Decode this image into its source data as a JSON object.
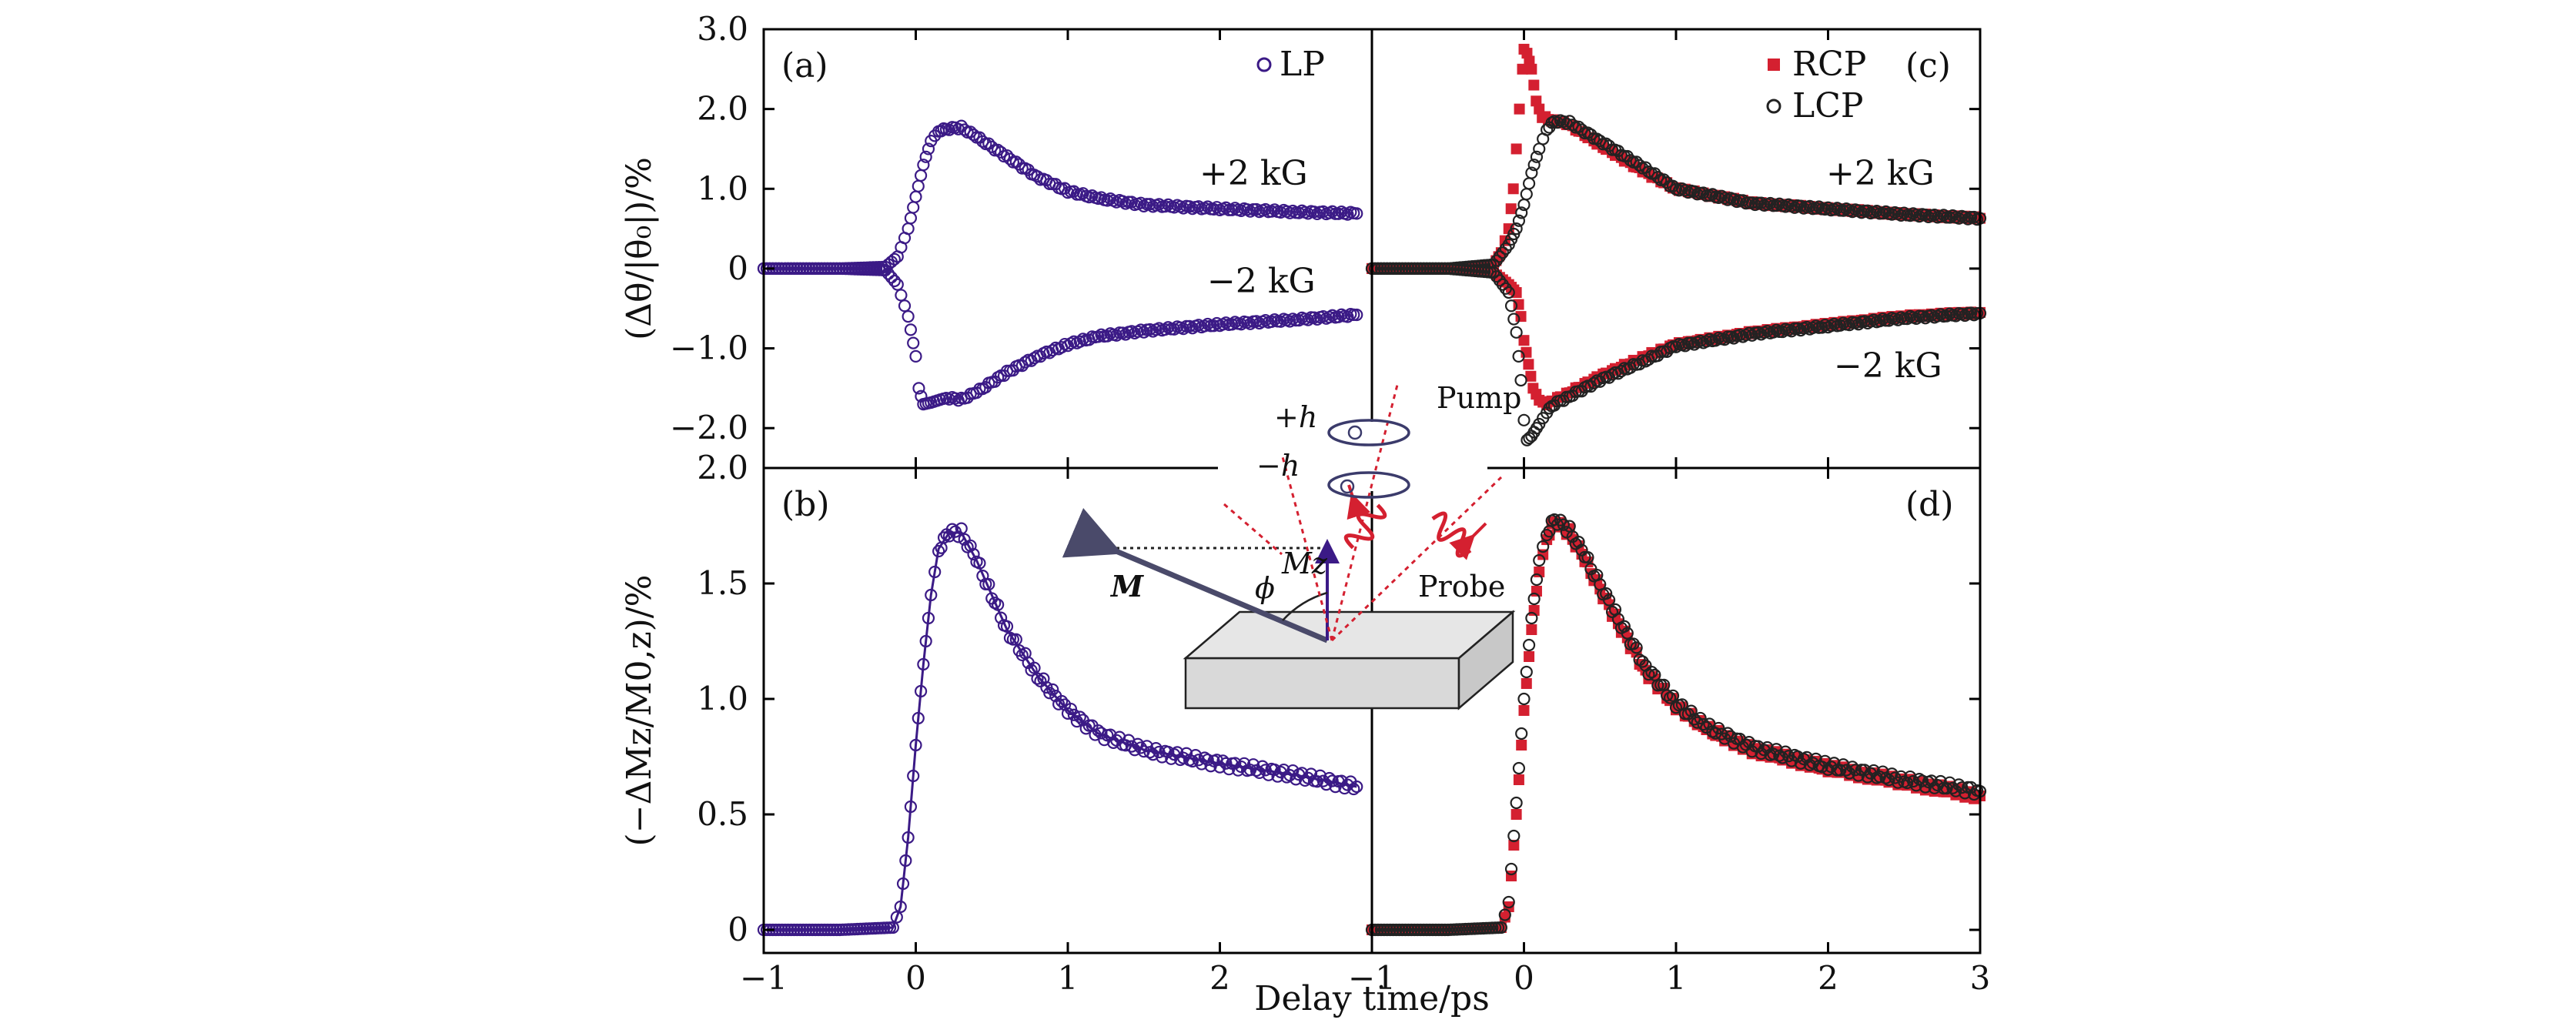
{
  "chart_data": [
    {
      "panel": "(a)",
      "type": "scatter",
      "xlim": [
        -1,
        3
      ],
      "ylim": [
        -2.5,
        3.0
      ],
      "yticks": [
        "3.0",
        "2.0",
        "1.0",
        "0",
        "−1.0",
        "−2.0"
      ],
      "ytick_values": [
        3.0,
        2.0,
        1.0,
        0,
        -1.0,
        -2.0
      ],
      "ylabel": "(Δθ/|θ₀|)/%",
      "legend": [
        "LP"
      ],
      "legend_position": "top-right",
      "annotations": [
        "+2 kG",
        "−2 kG"
      ],
      "colors": {
        "LP": "#3b1a86"
      },
      "series": [
        {
          "name": "LP",
          "field": "+2 kG",
          "points": [
            [
              -1.0,
              0
            ],
            [
              -0.5,
              0
            ],
            [
              -0.2,
              0.02
            ],
            [
              -0.12,
              0.15
            ],
            [
              -0.05,
              0.5
            ],
            [
              0.0,
              0.9
            ],
            [
              0.05,
              1.3
            ],
            [
              0.1,
              1.6
            ],
            [
              0.15,
              1.73
            ],
            [
              0.2,
              1.75
            ],
            [
              0.3,
              1.77
            ],
            [
              0.4,
              1.65
            ],
            [
              0.6,
              1.4
            ],
            [
              0.8,
              1.15
            ],
            [
              1.0,
              0.97
            ],
            [
              1.2,
              0.88
            ],
            [
              1.5,
              0.8
            ],
            [
              2.0,
              0.75
            ],
            [
              2.5,
              0.71
            ],
            [
              2.9,
              0.69
            ]
          ]
        },
        {
          "name": "LP",
          "field": "−2 kG",
          "points": [
            [
              -1.0,
              0
            ],
            [
              -0.5,
              0
            ],
            [
              -0.2,
              -0.02
            ],
            [
              -0.12,
              -0.2
            ],
            [
              -0.05,
              -0.6
            ],
            [
              0.0,
              -1.1
            ],
            [
              0.02,
              -1.5
            ],
            [
              0.05,
              -1.7
            ],
            [
              0.1,
              -1.68
            ],
            [
              0.2,
              -1.62
            ],
            [
              0.3,
              -1.64
            ],
            [
              0.4,
              -1.55
            ],
            [
              0.6,
              -1.3
            ],
            [
              0.8,
              -1.1
            ],
            [
              1.0,
              -0.95
            ],
            [
              1.2,
              -0.85
            ],
            [
              1.5,
              -0.78
            ],
            [
              2.0,
              -0.7
            ],
            [
              2.5,
              -0.64
            ],
            [
              2.9,
              -0.58
            ]
          ]
        }
      ]
    },
    {
      "panel": "(b)",
      "type": "scatter",
      "xlim": [
        -1,
        3
      ],
      "ylim": [
        -0.1,
        2.0
      ],
      "yticks": [
        "2.0",
        "1.5",
        "1.0",
        "0.5",
        "0"
      ],
      "ytick_values": [
        2.0,
        1.5,
        1.0,
        0.5,
        0
      ],
      "ylabel": "(−ΔMz/M0,z)/%",
      "series": [
        {
          "name": "LP",
          "points": [
            [
              -1.0,
              0
            ],
            [
              -0.5,
              0
            ],
            [
              -0.15,
              0.01
            ],
            [
              -0.1,
              0.1
            ],
            [
              -0.05,
              0.4
            ],
            [
              0.0,
              0.8
            ],
            [
              0.05,
              1.15
            ],
            [
              0.1,
              1.45
            ],
            [
              0.15,
              1.65
            ],
            [
              0.22,
              1.72
            ],
            [
              0.3,
              1.72
            ],
            [
              0.4,
              1.6
            ],
            [
              0.5,
              1.45
            ],
            [
              0.6,
              1.3
            ],
            [
              0.8,
              1.1
            ],
            [
              1.0,
              0.95
            ],
            [
              1.2,
              0.85
            ],
            [
              1.5,
              0.78
            ],
            [
              2.0,
              0.72
            ],
            [
              2.5,
              0.67
            ],
            [
              2.9,
              0.62
            ]
          ]
        }
      ]
    },
    {
      "panel": "(c)",
      "type": "scatter",
      "xlim": [
        -1,
        3
      ],
      "ylim": [
        -2.5,
        3.0
      ],
      "legend": [
        "RCP",
        "LCP"
      ],
      "legend_position": "top-right",
      "annotations": [
        "+2 kG",
        "−2 kG"
      ],
      "colors": {
        "RCP": "#d42030",
        "LCP": "#222222"
      },
      "series": [
        {
          "name": "RCP",
          "field": "+2 kG",
          "points": [
            [
              -1.0,
              0
            ],
            [
              -0.5,
              0
            ],
            [
              -0.2,
              0.05
            ],
            [
              -0.15,
              0.2
            ],
            [
              -0.1,
              0.5
            ],
            [
              -0.07,
              1.0
            ],
            [
              -0.05,
              1.5
            ],
            [
              -0.03,
              2.0
            ],
            [
              -0.01,
              2.5
            ],
            [
              0.0,
              2.75
            ],
            [
              0.02,
              2.7
            ],
            [
              0.05,
              2.5
            ],
            [
              0.08,
              2.1
            ],
            [
              0.12,
              1.9
            ],
            [
              0.2,
              1.85
            ],
            [
              0.3,
              1.8
            ],
            [
              0.5,
              1.55
            ],
            [
              0.8,
              1.2
            ],
            [
              1.0,
              1.0
            ],
            [
              1.5,
              0.82
            ],
            [
              2.0,
              0.75
            ],
            [
              2.5,
              0.68
            ],
            [
              3.0,
              0.63
            ]
          ]
        },
        {
          "name": "LCP",
          "field": "+2 kG",
          "points": [
            [
              -1.0,
              0
            ],
            [
              -0.5,
              0
            ],
            [
              -0.2,
              0.05
            ],
            [
              -0.1,
              0.3
            ],
            [
              -0.05,
              0.5
            ],
            [
              0.0,
              0.8
            ],
            [
              0.05,
              1.2
            ],
            [
              0.1,
              1.5
            ],
            [
              0.15,
              1.75
            ],
            [
              0.2,
              1.85
            ],
            [
              0.3,
              1.83
            ],
            [
              0.5,
              1.6
            ],
            [
              0.8,
              1.25
            ],
            [
              1.0,
              1.0
            ],
            [
              1.5,
              0.82
            ],
            [
              2.0,
              0.75
            ],
            [
              2.5,
              0.68
            ],
            [
              3.0,
              0.63
            ]
          ]
        },
        {
          "name": "RCP",
          "field": "−2 kG",
          "points": [
            [
              -1.0,
              0
            ],
            [
              -0.5,
              0
            ],
            [
              -0.2,
              -0.05
            ],
            [
              -0.1,
              -0.2
            ],
            [
              -0.05,
              -0.3
            ],
            [
              -0.02,
              -0.6
            ],
            [
              0.0,
              -0.9
            ],
            [
              0.03,
              -1.2
            ],
            [
              0.06,
              -1.5
            ],
            [
              0.1,
              -1.65
            ],
            [
              0.15,
              -1.7
            ],
            [
              0.2,
              -1.65
            ],
            [
              0.3,
              -1.55
            ],
            [
              0.5,
              -1.35
            ],
            [
              0.8,
              -1.1
            ],
            [
              1.0,
              -0.95
            ],
            [
              1.5,
              -0.8
            ],
            [
              2.0,
              -0.7
            ],
            [
              2.5,
              -0.6
            ],
            [
              3.0,
              -0.55
            ]
          ]
        },
        {
          "name": "LCP",
          "field": "−2 kG",
          "points": [
            [
              -1.0,
              0
            ],
            [
              -0.5,
              0
            ],
            [
              -0.2,
              -0.05
            ],
            [
              -0.1,
              -0.3
            ],
            [
              -0.05,
              -0.8
            ],
            [
              -0.02,
              -1.4
            ],
            [
              0.0,
              -1.9
            ],
            [
              0.02,
              -2.15
            ],
            [
              0.05,
              -2.1
            ],
            [
              0.1,
              -1.95
            ],
            [
              0.15,
              -1.8
            ],
            [
              0.2,
              -1.7
            ],
            [
              0.3,
              -1.6
            ],
            [
              0.5,
              -1.4
            ],
            [
              0.8,
              -1.15
            ],
            [
              1.0,
              -0.97
            ],
            [
              1.5,
              -0.82
            ],
            [
              2.0,
              -0.72
            ],
            [
              2.5,
              -0.62
            ],
            [
              3.0,
              -0.56
            ]
          ]
        }
      ]
    },
    {
      "panel": "(d)",
      "type": "scatter",
      "xlim": [
        -1,
        3
      ],
      "ylim": [
        -0.1,
        2.0
      ],
      "xticks": [
        "−1",
        "0",
        "1",
        "2",
        "3"
      ],
      "xtick_values": [
        -1,
        0,
        1,
        2,
        3
      ],
      "series": [
        {
          "name": "RCP",
          "points": [
            [
              -1.0,
              0
            ],
            [
              -0.5,
              0
            ],
            [
              -0.15,
              0.01
            ],
            [
              -0.1,
              0.1
            ],
            [
              -0.05,
              0.5
            ],
            [
              0.0,
              0.95
            ],
            [
              0.05,
              1.3
            ],
            [
              0.1,
              1.55
            ],
            [
              0.15,
              1.7
            ],
            [
              0.2,
              1.77
            ],
            [
              0.3,
              1.72
            ],
            [
              0.4,
              1.6
            ],
            [
              0.6,
              1.35
            ],
            [
              0.8,
              1.12
            ],
            [
              1.0,
              0.97
            ],
            [
              1.2,
              0.87
            ],
            [
              1.5,
              0.78
            ],
            [
              2.0,
              0.7
            ],
            [
              2.5,
              0.64
            ],
            [
              3.0,
              0.58
            ]
          ]
        },
        {
          "name": "LCP",
          "points": [
            [
              -1.0,
              0
            ],
            [
              -0.5,
              0
            ],
            [
              -0.15,
              0.01
            ],
            [
              -0.1,
              0.12
            ],
            [
              -0.05,
              0.55
            ],
            [
              0.0,
              1.0
            ],
            [
              0.05,
              1.35
            ],
            [
              0.1,
              1.6
            ],
            [
              0.15,
              1.72
            ],
            [
              0.2,
              1.78
            ],
            [
              0.3,
              1.73
            ],
            [
              0.4,
              1.62
            ],
            [
              0.6,
              1.37
            ],
            [
              0.8,
              1.14
            ],
            [
              1.0,
              0.98
            ],
            [
              1.2,
              0.88
            ],
            [
              1.5,
              0.79
            ],
            [
              2.0,
              0.71
            ],
            [
              2.5,
              0.65
            ],
            [
              3.0,
              0.6
            ]
          ]
        }
      ]
    }
  ],
  "figure": {
    "xlabel": "Delay time/ps",
    "bottom_xticks_left": [
      "−1",
      "0",
      "1",
      "2"
    ],
    "panel_labels": {
      "a": "(a)",
      "b": "(b)",
      "c": "(c)",
      "d": "(d)"
    },
    "field_labels": {
      "plus": "+2 kG",
      "minus": "−2 kG"
    },
    "legend_labels": {
      "LP": "LP",
      "RCP": "RCP",
      "LCP": "LCP"
    }
  },
  "inset": {
    "labels": {
      "plus_h": "+h",
      "minus_h": "−h",
      "pump": "Pump",
      "probe": "Probe",
      "m": "M",
      "mz": "Mz",
      "phi": "ϕ"
    },
    "colors": {
      "beam": "#d42030",
      "arrow": "#3b3b6b",
      "slab": "#d9d9d9"
    }
  }
}
